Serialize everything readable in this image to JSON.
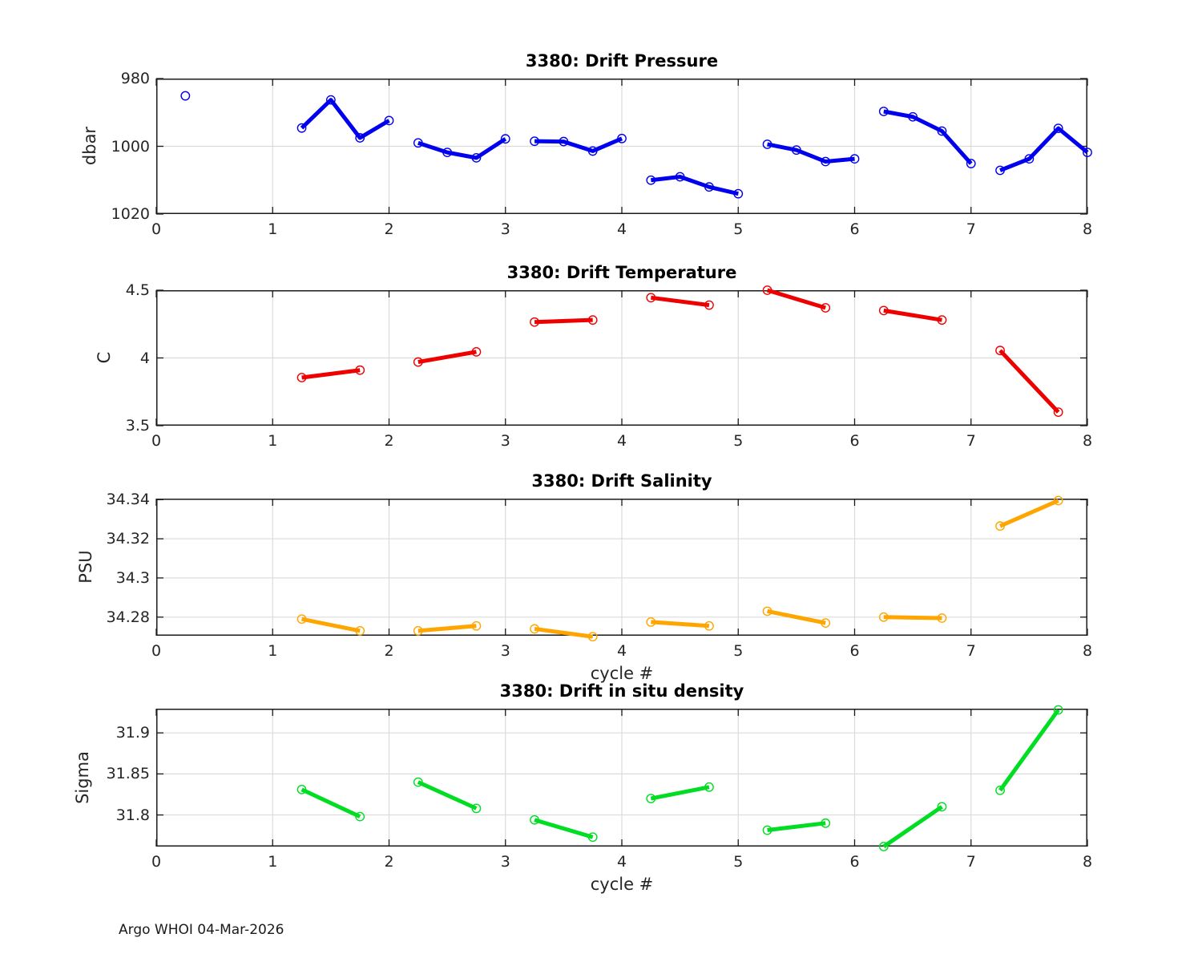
{
  "figure": {
    "footer": "Argo WHOI 04-Mar-2026",
    "background_color": "#FFFFFF",
    "axis_color": "#1a1a1a",
    "tick_label_color": "#262626",
    "grid_color": "#DBDBDB"
  },
  "chart_data": [
    {
      "type": "line",
      "name": "drift-pressure",
      "title": "3380: Drift Pressure",
      "xlabel": "",
      "ylabel": "dbar",
      "color": "#0000EE",
      "xlim": [
        0,
        8
      ],
      "ylim": [
        980,
        1020
      ],
      "y_axis_reversed": true,
      "grid": true,
      "legend": "none",
      "xticks": [
        0,
        1,
        2,
        3,
        4,
        5,
        6,
        7,
        8
      ],
      "yticks": [
        {
          "value": 980,
          "label": "980"
        },
        {
          "value": 1000,
          "label": "1000"
        },
        {
          "value": 1020,
          "label": "1020"
        }
      ],
      "segments": [
        {
          "x": [
            0.25
          ],
          "y": [
            985.1
          ]
        },
        {
          "x": [
            1.25,
            1.5,
            1.75,
            2.0
          ],
          "y": [
            994.6,
            986.3,
            997.5,
            992.4
          ]
        },
        {
          "x": [
            2.25,
            2.5,
            2.75,
            3.0
          ],
          "y": [
            999.0,
            1001.8,
            1003.4,
            997.8
          ]
        },
        {
          "x": [
            3.25,
            3.5,
            3.75,
            4.0
          ],
          "y": [
            998.5,
            998.6,
            1001.4,
            997.7
          ]
        },
        {
          "x": [
            4.25,
            4.5,
            4.75,
            5.0
          ],
          "y": [
            1010.0,
            1009.0,
            1012.0,
            1014.0
          ]
        },
        {
          "x": [
            5.25,
            5.5,
            5.75,
            6.0
          ],
          "y": [
            999.4,
            1001.1,
            1004.5,
            1003.7
          ]
        },
        {
          "x": [
            6.25,
            6.5,
            6.75,
            7.0
          ],
          "y": [
            989.7,
            991.3,
            995.5,
            1005.1
          ]
        },
        {
          "x": [
            7.25,
            7.5,
            7.75,
            8.0
          ],
          "y": [
            1007.1,
            1003.7,
            994.7,
            1001.8
          ]
        }
      ]
    },
    {
      "type": "line",
      "name": "drift-temperature",
      "title": "3380: Drift Temperature",
      "xlabel": "",
      "ylabel": "C",
      "color": "#EE0000",
      "xlim": [
        0,
        8
      ],
      "ylim": [
        3.5,
        4.5
      ],
      "y_axis_reversed": false,
      "grid": true,
      "legend": "none",
      "xticks": [
        0,
        1,
        2,
        3,
        4,
        5,
        6,
        7,
        8
      ],
      "yticks": [
        {
          "value": 3.5,
          "label": "3.5"
        },
        {
          "value": 4,
          "label": "4"
        },
        {
          "value": 4.5,
          "label": "4.5"
        }
      ],
      "segments": [
        {
          "x": [
            1.25,
            1.75
          ],
          "y": [
            3.855,
            3.91
          ]
        },
        {
          "x": [
            2.25,
            2.75
          ],
          "y": [
            3.97,
            4.045
          ]
        },
        {
          "x": [
            3.25,
            3.75
          ],
          "y": [
            4.265,
            4.28
          ]
        },
        {
          "x": [
            4.25,
            4.75
          ],
          "y": [
            4.445,
            4.39
          ]
        },
        {
          "x": [
            5.25,
            5.75
          ],
          "y": [
            4.5,
            4.37
          ]
        },
        {
          "x": [
            6.25,
            6.75
          ],
          "y": [
            4.35,
            4.28
          ]
        },
        {
          "x": [
            7.25,
            7.75
          ],
          "y": [
            4.055,
            3.6
          ]
        }
      ]
    },
    {
      "type": "line",
      "name": "drift-salinity",
      "title": "3380: Drift Salinity",
      "xlabel": "cycle #",
      "ylabel": "PSU",
      "color": "#FFA500",
      "xlim": [
        0,
        8
      ],
      "ylim": [
        34.2705,
        34.3405
      ],
      "y_axis_reversed": false,
      "grid": true,
      "legend": "none",
      "xticks": [
        0,
        1,
        2,
        3,
        4,
        5,
        6,
        7,
        8
      ],
      "yticks": [
        {
          "value": 34.28,
          "label": "34.28"
        },
        {
          "value": 34.3,
          "label": "34.3"
        },
        {
          "value": 34.32,
          "label": "34.32"
        },
        {
          "value": 34.34,
          "label": "34.34"
        }
      ],
      "segments": [
        {
          "x": [
            1.25,
            1.75
          ],
          "y": [
            34.279,
            34.273
          ]
        },
        {
          "x": [
            2.25,
            2.75
          ],
          "y": [
            34.273,
            34.2755
          ]
        },
        {
          "x": [
            3.25,
            3.75
          ],
          "y": [
            34.274,
            34.27
          ]
        },
        {
          "x": [
            4.25,
            4.75
          ],
          "y": [
            34.2775,
            34.2755
          ]
        },
        {
          "x": [
            5.25,
            5.75
          ],
          "y": [
            34.283,
            34.277
          ]
        },
        {
          "x": [
            6.25,
            6.75
          ],
          "y": [
            34.28,
            34.2795
          ]
        },
        {
          "x": [
            7.25,
            7.75
          ],
          "y": [
            34.3265,
            34.3395
          ]
        }
      ]
    },
    {
      "type": "line",
      "name": "drift-in-situ-density",
      "title": "3380: Drift in situ density",
      "xlabel": "cycle #",
      "ylabel": "Sigma",
      "color": "#00DD22",
      "xlim": [
        0,
        8
      ],
      "ylim": [
        31.7615,
        31.9295
      ],
      "y_axis_reversed": false,
      "grid": true,
      "legend": "none",
      "xticks": [
        0,
        1,
        2,
        3,
        4,
        5,
        6,
        7,
        8
      ],
      "yticks": [
        {
          "value": 31.8,
          "label": "31.8"
        },
        {
          "value": 31.85,
          "label": "31.85"
        },
        {
          "value": 31.9,
          "label": "31.9"
        }
      ],
      "segments": [
        {
          "x": [
            1.25,
            1.75
          ],
          "y": [
            31.831,
            31.798
          ]
        },
        {
          "x": [
            2.25,
            2.75
          ],
          "y": [
            31.84,
            31.808
          ]
        },
        {
          "x": [
            3.25,
            3.75
          ],
          "y": [
            31.794,
            31.773
          ]
        },
        {
          "x": [
            4.25,
            4.75
          ],
          "y": [
            31.82,
            31.834
          ]
        },
        {
          "x": [
            5.25,
            5.75
          ],
          "y": [
            31.7815,
            31.79
          ]
        },
        {
          "x": [
            6.25,
            6.75
          ],
          "y": [
            31.7615,
            31.81
          ]
        },
        {
          "x": [
            7.25,
            7.75
          ],
          "y": [
            31.83,
            31.928
          ]
        }
      ]
    }
  ]
}
